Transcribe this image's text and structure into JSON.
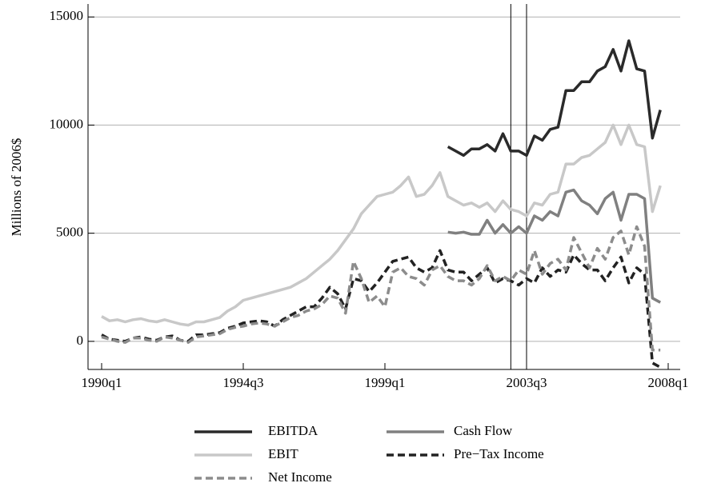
{
  "chart_data": {
    "type": "line",
    "ylabel": "Millions of 2006$",
    "x": [
      "1990q1",
      "1990q2",
      "1990q3",
      "1990q4",
      "1991q1",
      "1991q2",
      "1991q3",
      "1991q4",
      "1992q1",
      "1992q2",
      "1992q3",
      "1992q4",
      "1993q1",
      "1993q2",
      "1993q3",
      "1993q4",
      "1994q1",
      "1994q2",
      "1994q3",
      "1994q4",
      "1995q1",
      "1995q2",
      "1995q3",
      "1995q4",
      "1996q1",
      "1996q2",
      "1996q3",
      "1996q4",
      "1997q1",
      "1997q2",
      "1997q3",
      "1997q4",
      "1998q1",
      "1998q2",
      "1998q3",
      "1998q4",
      "1999q1",
      "1999q2",
      "1999q3",
      "1999q4",
      "2000q1",
      "2000q2",
      "2000q3",
      "2000q4",
      "2001q1",
      "2001q2",
      "2001q3",
      "2001q4",
      "2002q1",
      "2002q2",
      "2002q3",
      "2002q4",
      "2003q1",
      "2003q2",
      "2003q3",
      "2003q4",
      "2004q1",
      "2004q2",
      "2004q3",
      "2004q4",
      "2005q1",
      "2005q2",
      "2005q3",
      "2005q4",
      "2006q1",
      "2006q2",
      "2006q3",
      "2006q4",
      "2007q1",
      "2007q2",
      "2007q3",
      "2007q4"
    ],
    "xlim": [
      "1990q1",
      "2008q1"
    ],
    "xticks": [
      "1990q1",
      "1994q3",
      "1999q1",
      "2003q3",
      "2008q1"
    ],
    "ylim": [
      -1300,
      15600
    ],
    "yticks": [
      0,
      5000,
      10000,
      15000
    ],
    "grid": true,
    "vlines": [
      "2003q1",
      "2003q3"
    ],
    "series": [
      {
        "name": "EBITDA",
        "color": "#2a2a2a",
        "style": "solid",
        "values": [
          null,
          null,
          null,
          null,
          null,
          null,
          null,
          null,
          null,
          null,
          null,
          null,
          null,
          null,
          null,
          null,
          null,
          null,
          null,
          null,
          null,
          null,
          null,
          null,
          null,
          null,
          null,
          null,
          null,
          null,
          null,
          null,
          null,
          null,
          null,
          null,
          null,
          null,
          null,
          null,
          null,
          null,
          null,
          null,
          9000,
          8800,
          8600,
          8900,
          8900,
          9100,
          8800,
          9600,
          8800,
          8800,
          8600,
          9500,
          9300,
          9800,
          9900,
          11600,
          11600,
          12000,
          12000,
          12500,
          12700,
          13500,
          12500,
          13900,
          12600,
          12500,
          9400,
          10700
        ]
      },
      {
        "name": "Cash Flow",
        "color": "#808080",
        "style": "solid",
        "values": [
          null,
          null,
          null,
          null,
          null,
          null,
          null,
          null,
          null,
          null,
          null,
          null,
          null,
          null,
          null,
          null,
          null,
          null,
          null,
          null,
          null,
          null,
          null,
          null,
          null,
          null,
          null,
          null,
          null,
          null,
          null,
          null,
          null,
          null,
          null,
          null,
          null,
          null,
          null,
          null,
          null,
          null,
          null,
          null,
          5050,
          5000,
          5050,
          4950,
          4950,
          5600,
          5000,
          5400,
          5000,
          5300,
          5000,
          5800,
          5600,
          6000,
          5800,
          6900,
          7000,
          6500,
          6300,
          5900,
          6600,
          6900,
          5600,
          6800,
          6800,
          6600,
          2000,
          1800
        ]
      },
      {
        "name": "EBIT",
        "color": "#c8c8c8",
        "style": "solid",
        "values": [
          1150,
          950,
          1000,
          900,
          1000,
          1050,
          950,
          900,
          1000,
          900,
          800,
          750,
          900,
          900,
          1000,
          1100,
          1400,
          1600,
          1900,
          2000,
          2100,
          2200,
          2300,
          2400,
          2500,
          2700,
          2900,
          3200,
          3500,
          3800,
          4200,
          4700,
          5200,
          5900,
          6300,
          6700,
          6800,
          6900,
          7200,
          7600,
          6700,
          6800,
          7200,
          7800,
          6700,
          6500,
          6300,
          6400,
          6200,
          6400,
          6000,
          6500,
          6100,
          6000,
          5800,
          6400,
          6300,
          6800,
          6900,
          8200,
          8200,
          8500,
          8600,
          8900,
          9200,
          10000,
          9100,
          10000,
          9100,
          9000,
          6000,
          7200
        ]
      },
      {
        "name": "Pre−Tax Income",
        "color": "#222222",
        "style": "dashed",
        "values": [
          300,
          100,
          50,
          0,
          150,
          200,
          100,
          50,
          200,
          250,
          50,
          0,
          300,
          300,
          350,
          400,
          600,
          700,
          850,
          900,
          950,
          900,
          700,
          1000,
          1200,
          1400,
          1600,
          1600,
          2000,
          2500,
          2200,
          1500,
          2900,
          2800,
          2300,
          2700,
          3200,
          3700,
          3800,
          3900,
          3400,
          3200,
          3400,
          4200,
          3300,
          3200,
          3200,
          2800,
          3100,
          3400,
          2700,
          2900,
          2800,
          2600,
          2900,
          2700,
          3400,
          3000,
          3300,
          3200,
          4000,
          3600,
          3300,
          3300,
          2800,
          3400,
          3900,
          2700,
          3400,
          3100,
          -1000,
          -1200
        ]
      },
      {
        "name": "Net Income",
        "color": "#8c8c8c",
        "style": "dashed",
        "values": [
          200,
          100,
          0,
          -50,
          150,
          150,
          50,
          0,
          200,
          150,
          50,
          -50,
          200,
          250,
          300,
          350,
          550,
          650,
          700,
          800,
          850,
          800,
          700,
          900,
          1100,
          1200,
          1400,
          1500,
          1700,
          2100,
          2000,
          1300,
          3700,
          2900,
          1800,
          2100,
          1600,
          3200,
          3400,
          3000,
          2900,
          2600,
          3300,
          3500,
          3000,
          2800,
          2800,
          2600,
          2900,
          3500,
          2800,
          3000,
          2800,
          3300,
          3100,
          4200,
          3100,
          3600,
          3800,
          3300,
          4800,
          4100,
          3400,
          4300,
          3800,
          4800,
          5100,
          4000,
          5300,
          4400,
          -400,
          -400
        ]
      }
    ]
  }
}
